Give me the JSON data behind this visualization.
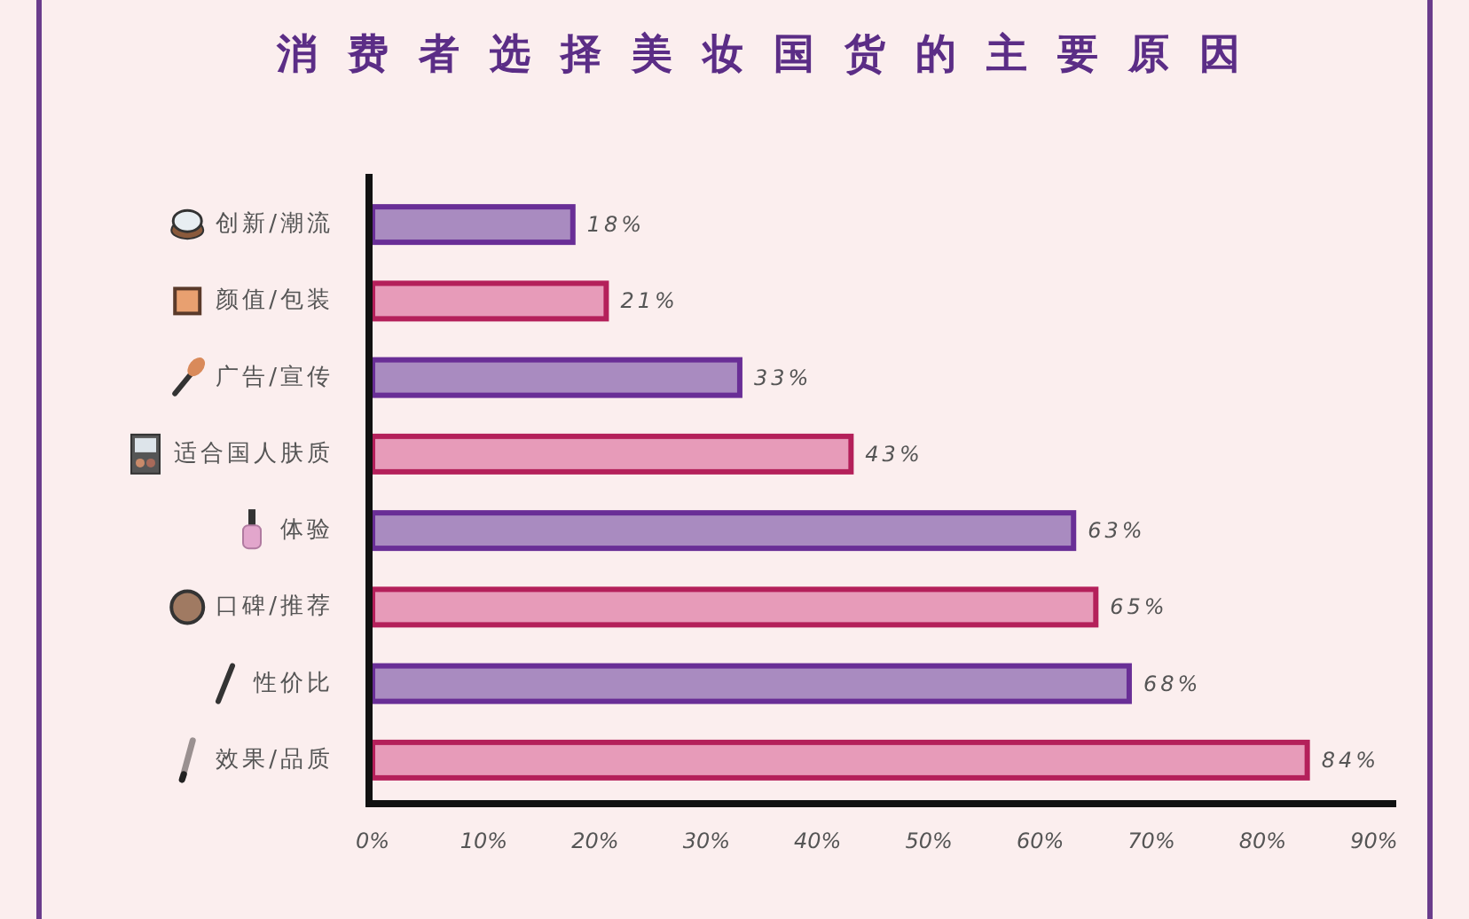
{
  "chart_data": {
    "type": "bar",
    "orientation": "horizontal",
    "title": "消费者选择美妆国货的主要原因",
    "categories": [
      "创新/潮流",
      "颜值/包装",
      "广告/宣传",
      "适合国人肤质",
      "体验",
      "口碑/推荐",
      "性价比",
      "效果/品质"
    ],
    "values": [
      18,
      21,
      33,
      43,
      63,
      65,
      68,
      84
    ],
    "colors": [
      "#a98bc0",
      "#e79bb9",
      "#a98bc0",
      "#e79bb9",
      "#a98bc0",
      "#e79bb9",
      "#a98bc0",
      "#e79bb9"
    ],
    "value_labels": [
      "18%",
      "21%",
      "33%",
      "43%",
      "63%",
      "65%",
      "68%",
      "84%"
    ],
    "xlim": [
      0,
      92
    ],
    "xticks": [
      {
        "value": 0,
        "label": "0%"
      },
      {
        "value": 10,
        "label": "10%"
      },
      {
        "value": 20,
        "label": "20%"
      },
      {
        "value": 30,
        "label": "30%"
      },
      {
        "value": 40,
        "label": "40%"
      },
      {
        "value": 50,
        "label": "50%"
      },
      {
        "value": 60,
        "label": "60%"
      },
      {
        "value": 70,
        "label": "70%"
      },
      {
        "value": 80,
        "label": "80%"
      },
      {
        "value": 90,
        "label": "90%"
      }
    ]
  }
}
